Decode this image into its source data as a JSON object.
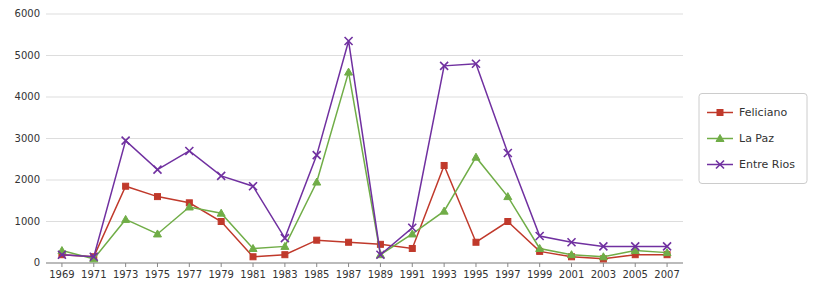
{
  "chart_data": {
    "type": "line",
    "categories": [
      "1969",
      "1971",
      "1973",
      "1975",
      "1977",
      "1979",
      "1981",
      "1983",
      "1985",
      "1987",
      "1989",
      "1991",
      "1993",
      "1995",
      "1997",
      "1999",
      "2001",
      "2003",
      "2005",
      "2007"
    ],
    "series": [
      {
        "name": "Feliciano",
        "color": "#c0392b",
        "marker": "square",
        "values": [
          200,
          150,
          1850,
          1600,
          1450,
          1000,
          150,
          200,
          550,
          500,
          450,
          350,
          2350,
          500,
          1000,
          280,
          150,
          100,
          200,
          200
        ]
      },
      {
        "name": "La Paz",
        "color": "#70ad47",
        "marker": "triangle",
        "values": [
          300,
          100,
          1050,
          700,
          1350,
          1200,
          350,
          400,
          1950,
          4600,
          200,
          700,
          1250,
          2550,
          1600,
          350,
          200,
          150,
          300,
          250
        ]
      },
      {
        "name": "Entre Rios",
        "color": "#7030a0",
        "marker": "x",
        "values": [
          200,
          150,
          2950,
          2250,
          2700,
          2100,
          1850,
          600,
          2600,
          5350,
          200,
          850,
          4750,
          4800,
          2650,
          650,
          500,
          400,
          400,
          400
        ]
      }
    ],
    "ylim": [
      0,
      6000
    ],
    "yticks": [
      0,
      1000,
      2000,
      3000,
      4000,
      5000,
      6000
    ],
    "grid": true,
    "legend": "right"
  }
}
